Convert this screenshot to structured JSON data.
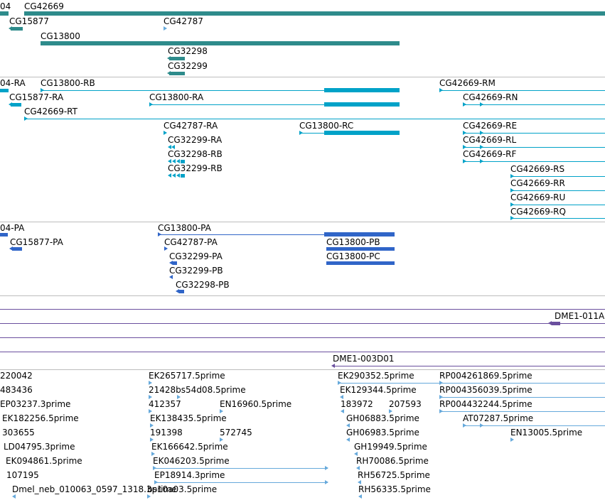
{
  "colors": {
    "gene": "#2e8b8b",
    "transcript": "#00a2c8",
    "protein": "#3065c8",
    "array": "#6a4f9e",
    "est": "#66a9db"
  },
  "tracks": {
    "genes": {
      "items": [
        {
          "label": "04",
          "name": "gene-fragment-04"
        },
        {
          "label": "CG42669",
          "name": "gene-cg42669"
        },
        {
          "label": "CG15877",
          "name": "gene-cg15877"
        },
        {
          "label": "CG42787",
          "name": "gene-cg42787"
        },
        {
          "label": "CG13800",
          "name": "gene-cg13800"
        },
        {
          "label": "CG32298",
          "name": "gene-cg32298"
        },
        {
          "label": "CG32299",
          "name": "gene-cg32299"
        }
      ]
    },
    "transcripts": {
      "items": [
        {
          "label": "04-RA"
        },
        {
          "label": "CG13800-RB"
        },
        {
          "label": "CG42669-RM"
        },
        {
          "label": "CG15877-RA"
        },
        {
          "label": "CG13800-RA"
        },
        {
          "label": "CG42669-RN"
        },
        {
          "label": "CG42669-RT"
        },
        {
          "label": "CG42787-RA"
        },
        {
          "label": "CG13800-RC"
        },
        {
          "label": "CG42669-RE"
        },
        {
          "label": "CG32299-RA"
        },
        {
          "label": "CG42669-RL"
        },
        {
          "label": "CG32298-RB"
        },
        {
          "label": "CG42669-RF"
        },
        {
          "label": "CG32299-RB"
        },
        {
          "label": "CG42669-RS"
        },
        {
          "label": "CG42669-RR"
        },
        {
          "label": "CG42669-RU"
        },
        {
          "label": "CG42669-RQ"
        }
      ]
    },
    "proteins": {
      "items": [
        {
          "label": "04-PA"
        },
        {
          "label": "CG13800-PA"
        },
        {
          "label": "CG15877-PA"
        },
        {
          "label": "CG42787-PA"
        },
        {
          "label": "CG13800-PB"
        },
        {
          "label": "CG32299-PA"
        },
        {
          "label": "CG13800-PC"
        },
        {
          "label": "CG32299-PB"
        },
        {
          "label": "CG32298-PB"
        }
      ]
    },
    "arrays": {
      "items": [
        {
          "label": "DME1-011A"
        },
        {
          "label": "DME1-003D01"
        }
      ]
    },
    "ests": {
      "items": [
        {
          "label": "220042"
        },
        {
          "label": "EK265717.5prime"
        },
        {
          "label": "EK290352.5prime"
        },
        {
          "label": "RP004261869.5prime"
        },
        {
          "label": "483436"
        },
        {
          "label": "21428bs54d08.5prime"
        },
        {
          "label": "EK129344.5prime"
        },
        {
          "label": "RP004356039.5prime"
        },
        {
          "label": "EP03237.3prime"
        },
        {
          "label": "412357"
        },
        {
          "label": "EN16960.5prime"
        },
        {
          "label": "183972"
        },
        {
          "label": "207593"
        },
        {
          "label": "RP004432244.5prime"
        },
        {
          "label": "EK182256.5prime"
        },
        {
          "label": "EK138435.5prime"
        },
        {
          "label": "GH06883.5prime"
        },
        {
          "label": "AT07287.5prime"
        },
        {
          "label": "303655"
        },
        {
          "label": "191398"
        },
        {
          "label": "572745"
        },
        {
          "label": "GH06983.5prime"
        },
        {
          "label": "EN13005.5prime"
        },
        {
          "label": "LD04795.3prime"
        },
        {
          "label": "EK166642.5prime"
        },
        {
          "label": "GH19949.5prime"
        },
        {
          "label": "EK094861.5prime"
        },
        {
          "label": "EK046203.5prime"
        },
        {
          "label": "RH70086.5prime"
        },
        {
          "label": "107195"
        },
        {
          "label": "EP18914.3prime"
        },
        {
          "label": "RH56725.5prime"
        },
        {
          "label": "Dmel_neb_010063_0597_1318.3prime"
        },
        {
          "label": "bs10a03.5prime"
        },
        {
          "label": "RH56335.5prime"
        }
      ]
    }
  }
}
